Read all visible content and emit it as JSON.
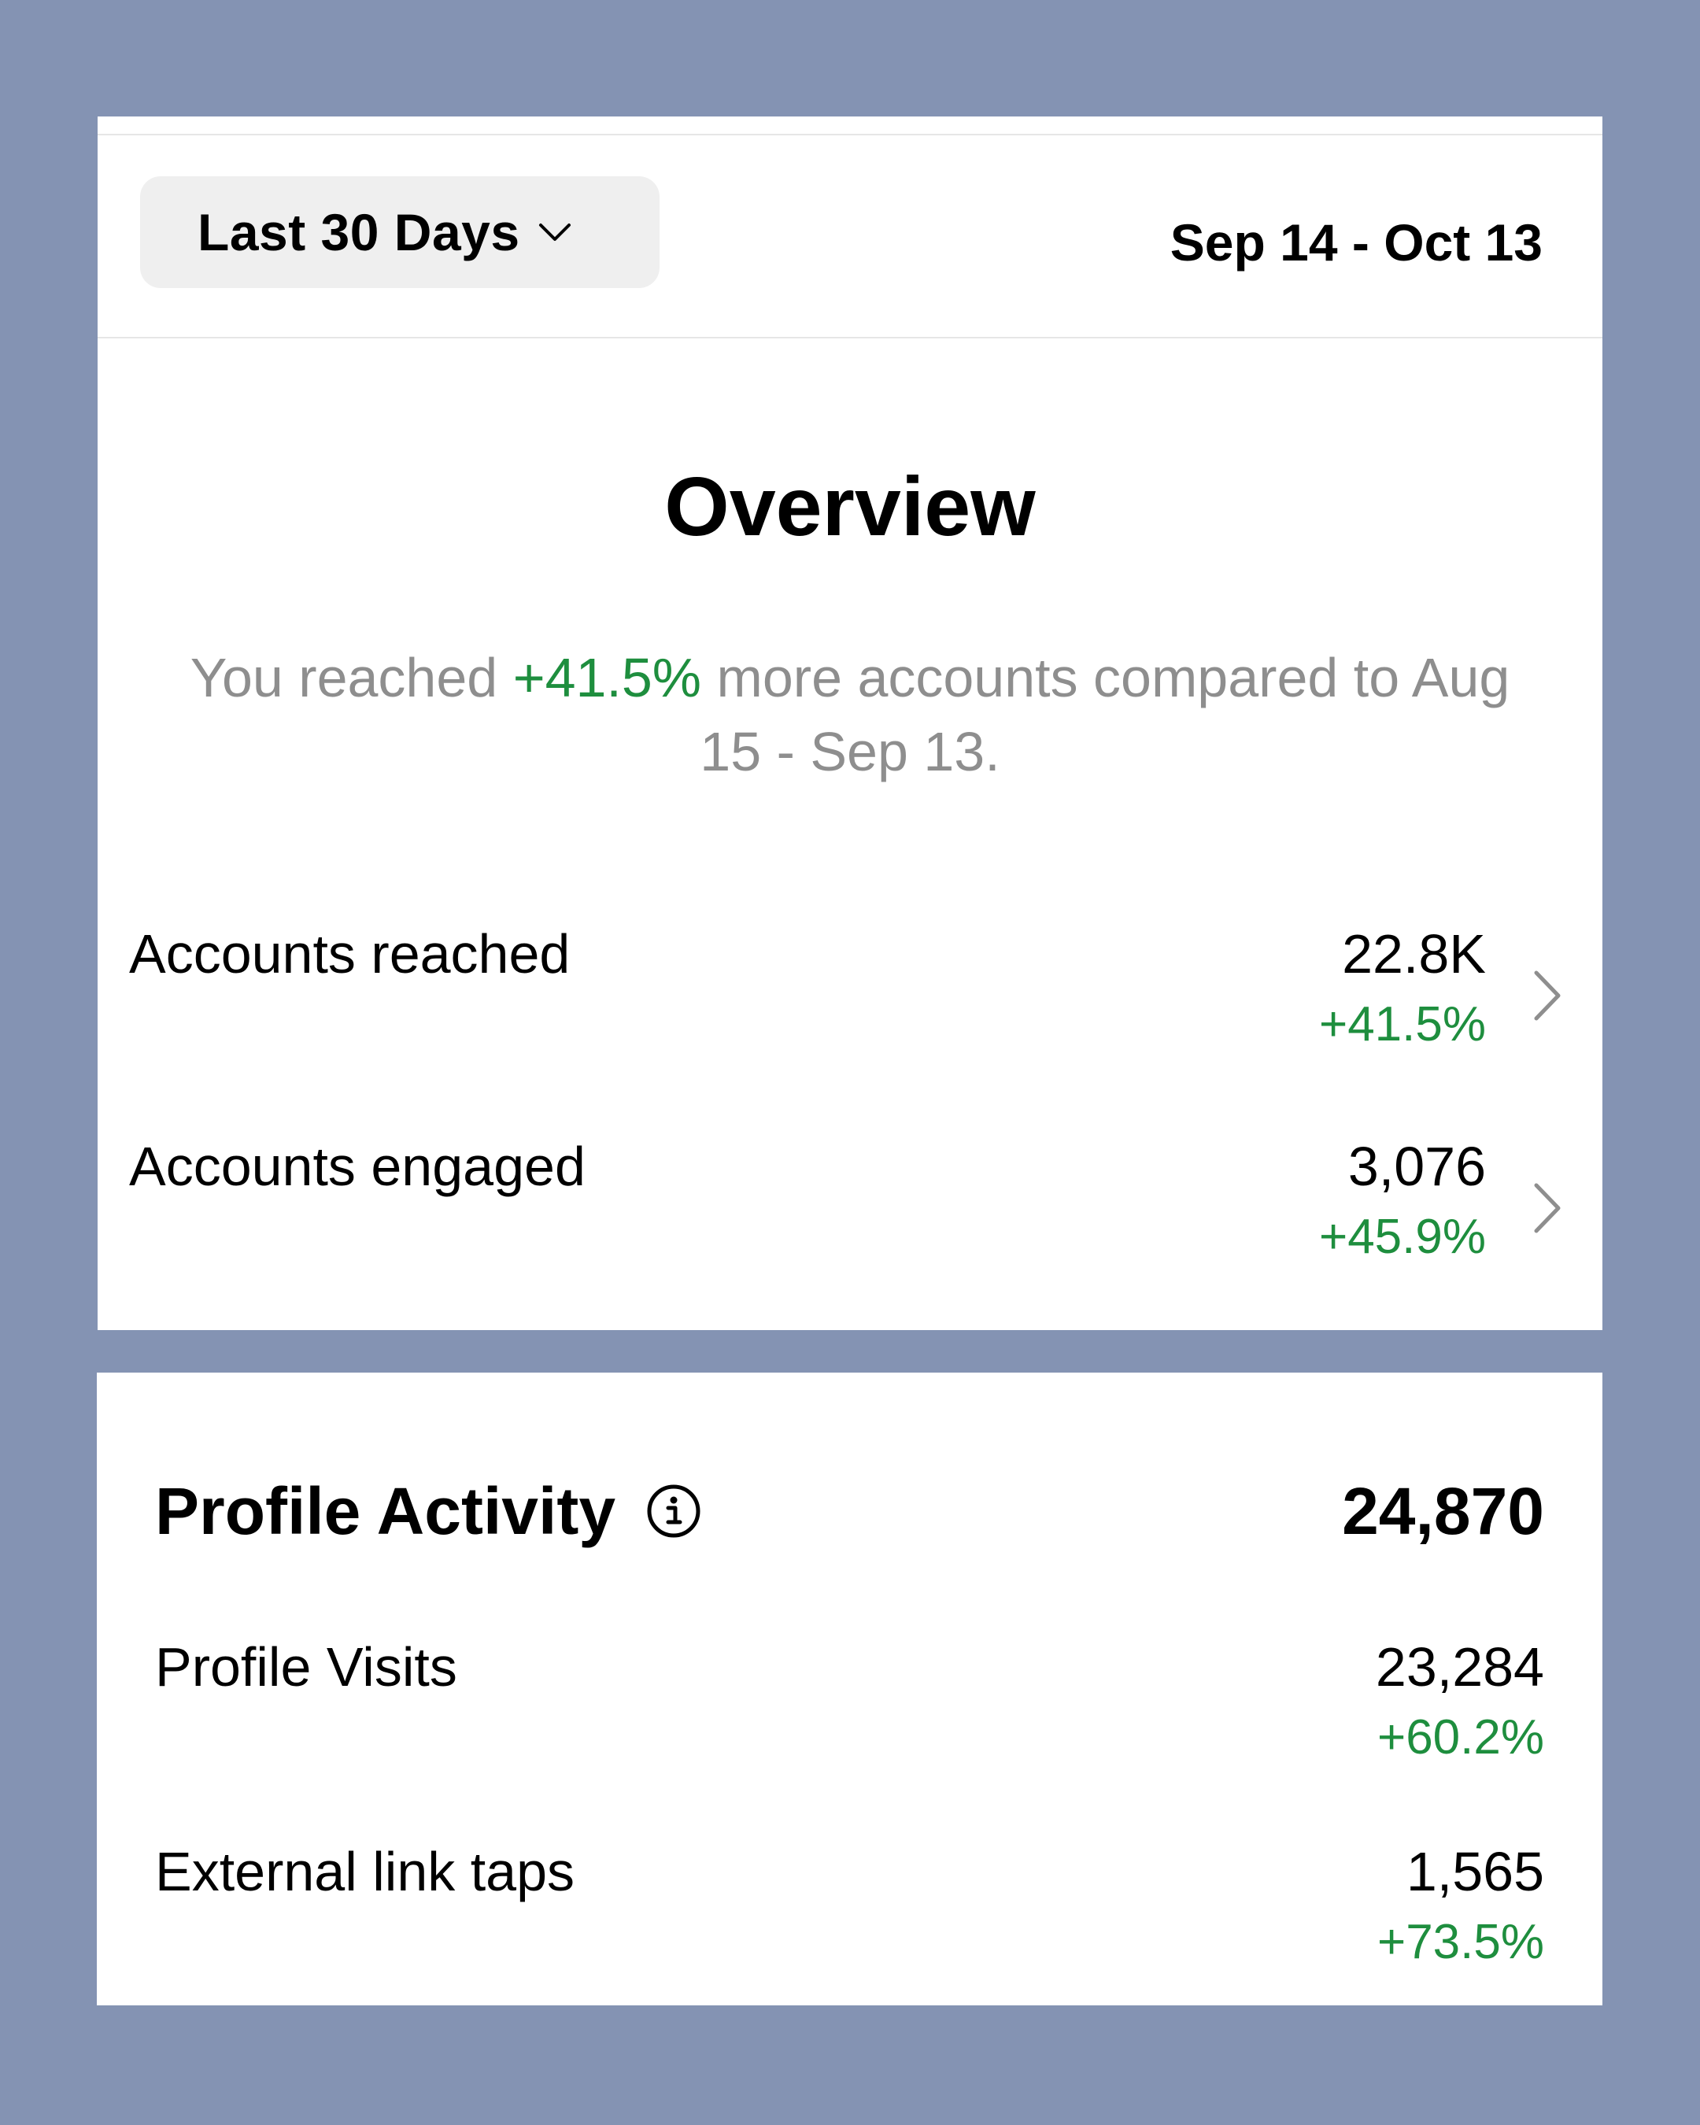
{
  "header": {
    "range_label": "Last 30 Days",
    "date_range": "Sep 14 - Oct 13"
  },
  "overview": {
    "title": "Overview",
    "summary_prefix": "You reached ",
    "summary_delta": "+41.5%",
    "summary_suffix": " more accounts compared to Aug 15 - Sep 13."
  },
  "metrics": [
    {
      "label": "Accounts reached",
      "value": "22.8K",
      "delta": "+41.5%"
    },
    {
      "label": "Accounts engaged",
      "value": "3,076",
      "delta": "+45.9%"
    }
  ],
  "profile_activity": {
    "title": "Profile Activity",
    "total": "24,870",
    "rows": [
      {
        "label": "Profile Visits",
        "value": "23,284",
        "delta": "+60.2%"
      },
      {
        "label": "External link taps",
        "value": "1,565",
        "delta": "+73.5%"
      }
    ]
  },
  "colors": {
    "background": "#8493b3",
    "card": "#ffffff",
    "positive": "#1e8e3e",
    "muted_text": "#8e8e8e",
    "pill": "#efefef"
  },
  "icons": {
    "range_dropdown": "chevron-down-icon",
    "row_link": "chevron-right-icon",
    "info": "info-icon"
  }
}
